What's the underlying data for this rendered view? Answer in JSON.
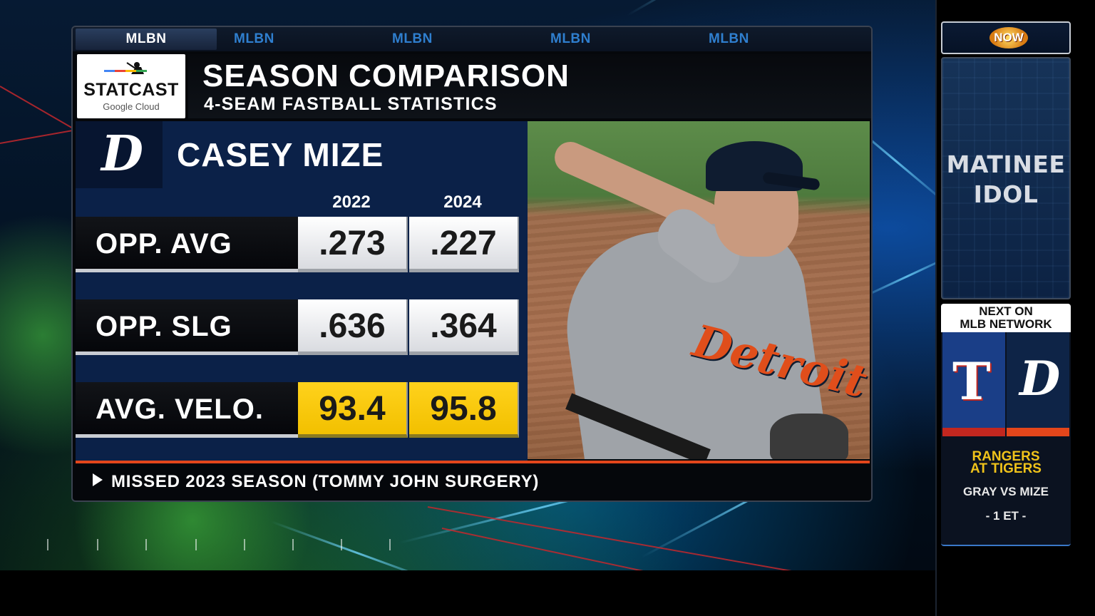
{
  "network_tabs": [
    "MLBN",
    "MLBN",
    "MLBN",
    "MLBN",
    "MLBN"
  ],
  "statcast": {
    "wordmark": "STATCAST",
    "sponsor": "Google Cloud"
  },
  "graphic": {
    "title": "SEASON COMPARISON",
    "subtitle": "4-SEAM FASTBALL STATISTICS",
    "team_logo_icon": "tigers-d-logo-icon",
    "player_name": "CASEY MIZE",
    "columns": [
      "2022",
      "2024"
    ],
    "rows": [
      {
        "label": "OPP. AVG",
        "values": [
          ".273",
          ".227"
        ],
        "highlight": false
      },
      {
        "label": "OPP. SLG",
        "values": [
          ".636",
          ".364"
        ],
        "highlight": false
      },
      {
        "label": "AVG. VELO.",
        "values": [
          "93.4",
          "95.8"
        ],
        "highlight": true
      }
    ],
    "photo_jersey_text": "Detroit",
    "footnote": "MISSED 2023 SEASON (TOMMY JOHN SURGERY)"
  },
  "rail": {
    "now_badge": "NOW",
    "show_title_line1": "MATINEE",
    "show_title_line2": "IDOL",
    "next_line1": "NEXT ON",
    "next_line2": "MLB NETWORK",
    "away_logo_icon": "rangers-t-logo-icon",
    "home_logo_icon": "tigers-d-logo-icon",
    "matchup_line1": "RANGERS",
    "matchup_line2": "AT TIGERS",
    "pitchers": "GRAY VS MIZE",
    "time": "- 1 ET -"
  },
  "colors": {
    "accent_orange": "#e3461b",
    "highlight_yellow": "#f2c000",
    "tigers_navy": "#0b2148",
    "tab_blue": "#2f7fcf"
  }
}
